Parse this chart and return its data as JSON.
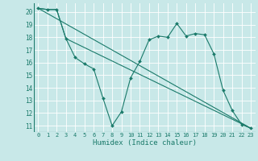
{
  "xlabel": "Humidex (Indice chaleur)",
  "background_color": "#c8e8e8",
  "grid_color": "#ffffff",
  "line_color": "#1a7a6a",
  "xlim": [
    -0.5,
    23.5
  ],
  "ylim": [
    10.5,
    20.7
  ],
  "yticks": [
    11,
    12,
    13,
    14,
    15,
    16,
    17,
    18,
    19,
    20
  ],
  "series_main": {
    "x": [
      0,
      1,
      2,
      3,
      4,
      5,
      6,
      7,
      8,
      9,
      10,
      11,
      12,
      13,
      14,
      15,
      16,
      17,
      18,
      19,
      20,
      21,
      22,
      23
    ],
    "y": [
      20.3,
      20.2,
      20.2,
      17.9,
      16.4,
      15.9,
      15.5,
      13.2,
      11.0,
      12.1,
      14.8,
      16.1,
      17.8,
      18.1,
      18.0,
      19.1,
      18.1,
      18.3,
      18.2,
      16.7,
      13.8,
      12.2,
      11.1,
      10.8
    ]
  },
  "series_envelope": {
    "x": [
      0,
      1,
      2,
      3,
      23
    ],
    "y": [
      20.3,
      20.2,
      20.2,
      17.9,
      10.8
    ]
  },
  "series_diagonal": {
    "x": [
      0,
      23
    ],
    "y": [
      20.3,
      10.8
    ]
  }
}
